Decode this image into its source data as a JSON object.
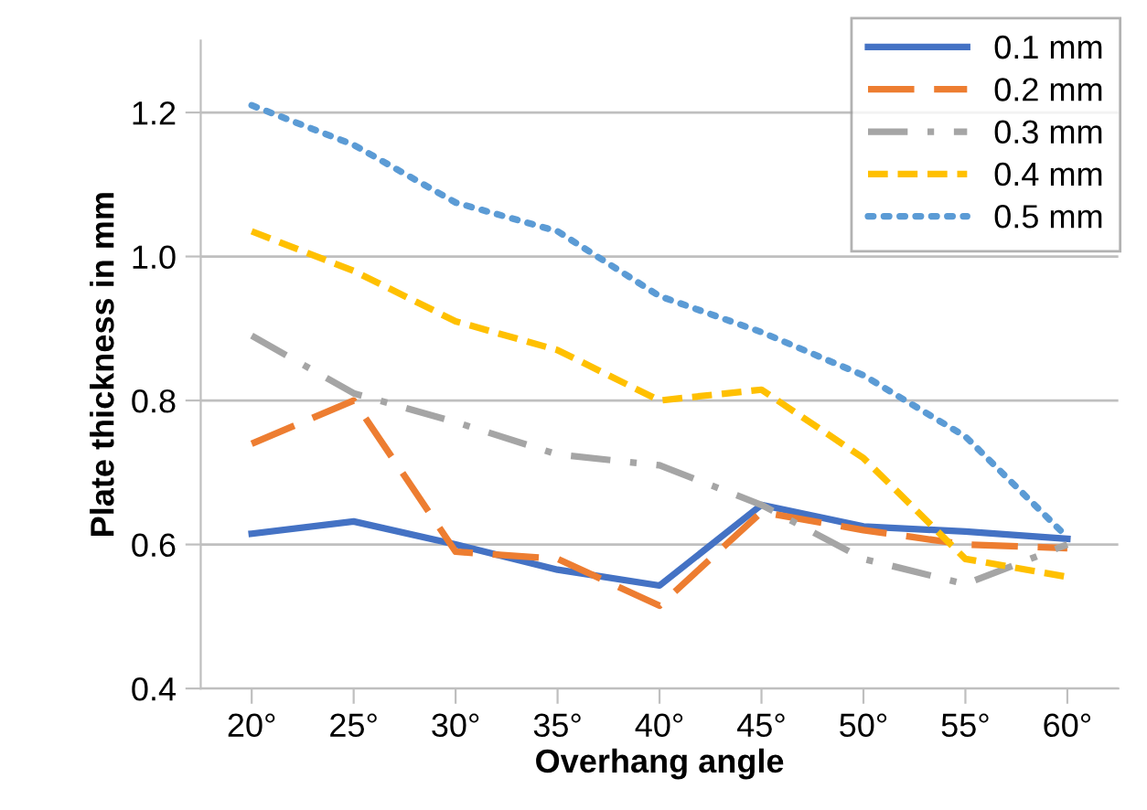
{
  "chart_data": {
    "type": "line",
    "xlabel": "Overhang angle",
    "ylabel": "Plate thickness in mm",
    "categories": [
      "20°",
      "25°",
      "30°",
      "35°",
      "40°",
      "45°",
      "50°",
      "55°",
      "60°"
    ],
    "series": [
      {
        "name": "0.1 mm",
        "color": "#4472c4",
        "line_style": "solid",
        "values": [
          0.615,
          0.632,
          0.6,
          0.565,
          0.543,
          0.655,
          0.625,
          0.618,
          0.608
        ]
      },
      {
        "name": "0.2 mm",
        "color": "#ed7d31",
        "line_style": "long_dashed",
        "values": [
          0.74,
          0.8,
          0.59,
          0.58,
          0.515,
          0.645,
          0.62,
          0.6,
          0.595
        ]
      },
      {
        "name": "0.3 mm",
        "color": "#a5a5a5",
        "line_style": "dash_dot",
        "values": [
          0.89,
          0.81,
          0.77,
          0.725,
          0.71,
          0.655,
          0.58,
          0.545,
          0.6
        ]
      },
      {
        "name": "0.4 mm",
        "color": "#ffc000",
        "line_style": "dashed",
        "values": [
          1.035,
          0.98,
          0.91,
          0.87,
          0.8,
          0.815,
          0.72,
          0.58,
          0.555
        ]
      },
      {
        "name": "0.5 mm",
        "color": "#5b9bd5",
        "line_style": "dotted",
        "values": [
          1.21,
          1.155,
          1.075,
          1.035,
          0.945,
          0.895,
          0.835,
          0.75,
          0.61
        ]
      }
    ],
    "ylim": [
      0.4,
      1.3
    ],
    "yticks": [
      0.4,
      0.6,
      0.8,
      {
        "value": 1,
        "label": "1.0"
      },
      1.2
    ],
    "grid": "y",
    "legend": "top right",
    "marker": "none"
  }
}
